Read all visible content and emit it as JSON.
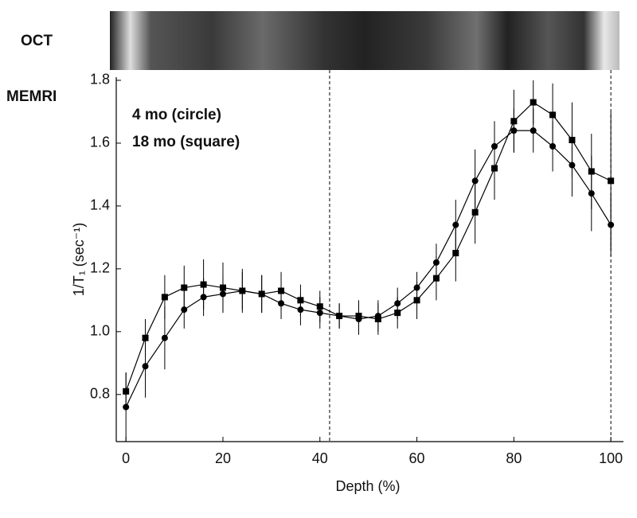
{
  "chart_data": {
    "type": "line",
    "row_labels": [
      "OCT",
      "MEMRI"
    ],
    "xlabel": "Depth (%)",
    "ylabel": "1/T₁ (sec⁻¹)",
    "x": [
      0,
      4,
      8,
      12,
      16,
      20,
      24,
      28,
      32,
      36,
      40,
      44,
      48,
      52,
      56,
      60,
      64,
      68,
      72,
      76,
      80,
      84,
      88,
      92,
      96,
      100
    ],
    "series": [
      {
        "name": "4 mo (circle)",
        "marker": "circle",
        "color": "#000000",
        "values": [
          0.76,
          0.89,
          0.98,
          1.07,
          1.11,
          1.12,
          1.13,
          1.12,
          1.09,
          1.07,
          1.06,
          1.05,
          1.04,
          1.05,
          1.09,
          1.14,
          1.22,
          1.34,
          1.48,
          1.59,
          1.64,
          1.64,
          1.59,
          1.53,
          1.44,
          1.34
        ],
        "errors": [
          0.11,
          0.1,
          0.1,
          0.06,
          0.06,
          0.06,
          0.06,
          0.06,
          0.05,
          0.05,
          0.05,
          0.04,
          0.05,
          0.05,
          0.05,
          0.05,
          0.06,
          0.08,
          0.1,
          0.08,
          0.07,
          0.07,
          0.08,
          0.1,
          0.12,
          0.1
        ]
      },
      {
        "name": "18 mo (square)",
        "marker": "square",
        "color": "#000000",
        "values": [
          0.81,
          0.98,
          1.11,
          1.14,
          1.15,
          1.14,
          1.13,
          1.12,
          1.13,
          1.1,
          1.08,
          1.05,
          1.05,
          1.04,
          1.06,
          1.1,
          1.17,
          1.25,
          1.38,
          1.52,
          1.67,
          1.73,
          1.69,
          1.61,
          1.51,
          1.48
        ],
        "errors": [
          0.06,
          0.06,
          0.07,
          0.07,
          0.08,
          0.08,
          0.07,
          0.06,
          0.06,
          0.05,
          0.05,
          0.04,
          0.05,
          0.05,
          0.05,
          0.06,
          0.07,
          0.09,
          0.1,
          0.1,
          0.1,
          0.07,
          0.1,
          0.12,
          0.12,
          0.22
        ]
      }
    ],
    "vlines": [
      42,
      100
    ],
    "xlim": [
      -2,
      102.6
    ],
    "ylim": [
      0.65,
      1.81
    ],
    "xticks": [
      0,
      20,
      40,
      60,
      80,
      100
    ],
    "yticks": [
      0.8,
      {
        "value": 1,
        "label": "1.0"
      },
      1.2,
      1.4,
      1.6,
      1.8
    ],
    "grid": false
  }
}
